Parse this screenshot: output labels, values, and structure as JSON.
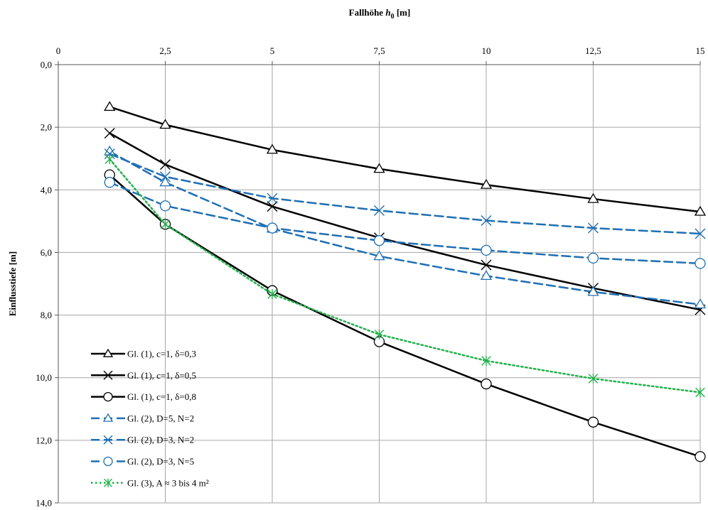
{
  "chart_data": {
    "type": "line",
    "xlabel": {
      "prefix": "Fallhöhe ",
      "var": "h",
      "sub": "0",
      "suffix": " [m]"
    },
    "ylabel": "Einflusstiefe [m]",
    "x_axis_position": "top",
    "y_axis_inverted": true,
    "xlim": [
      0,
      15
    ],
    "ylim": [
      0,
      14
    ],
    "x_ticks": [
      0,
      2.5,
      5,
      7.5,
      10,
      12.5,
      15
    ],
    "x_tick_labels": [
      "0",
      "2,5",
      "5",
      "7,5",
      "10",
      "12,5",
      "15"
    ],
    "y_ticks": [
      0,
      2,
      4,
      6,
      8,
      10,
      12,
      14
    ],
    "y_tick_labels": [
      "0,0",
      "2,0",
      "4,0",
      "6,0",
      "8,0",
      "10,0",
      "12,0",
      "14,0"
    ],
    "grid": true,
    "legend_position": "bottom-left",
    "x": [
      1.2,
      2.5,
      5,
      7.5,
      10,
      12.5,
      15
    ],
    "series": [
      {
        "name": "Gl. (1), c=1, δ=0,3",
        "color": "#000000",
        "dash": "solid",
        "marker": "triangle",
        "values": [
          1.35,
          1.92,
          2.72,
          3.33,
          3.84,
          4.29,
          4.7
        ]
      },
      {
        "name": "Gl. (1), c=1, δ=0,5",
        "color": "#000000",
        "dash": "solid",
        "marker": "x",
        "values": [
          2.19,
          3.19,
          4.53,
          5.53,
          6.4,
          7.14,
          7.83
        ]
      },
      {
        "name": "Gl. (1), c=1, δ=0,8",
        "color": "#000000",
        "dash": "solid",
        "marker": "circle",
        "values": [
          3.52,
          5.1,
          7.22,
          8.85,
          10.2,
          11.42,
          12.52
        ]
      },
      {
        "name": "Gl. (2), D=5, N=2",
        "color": "#1F6FB4",
        "dash": "dashed",
        "marker": "triangle",
        "values": [
          2.77,
          3.76,
          5.24,
          6.12,
          6.75,
          7.26,
          7.66
        ]
      },
      {
        "name": "Gl. (2), D=3, N=2",
        "color": "#1F6FB4",
        "dash": "dashed",
        "marker": "x",
        "values": [
          2.85,
          3.58,
          4.27,
          4.66,
          4.98,
          5.22,
          5.4
        ]
      },
      {
        "name": "Gl. (2), D=3, N=5",
        "color": "#1F6FB4",
        "dash": "dashed",
        "marker": "circle",
        "values": [
          3.76,
          4.51,
          5.22,
          5.62,
          5.93,
          6.18,
          6.35
        ]
      },
      {
        "name": "Gl. (3), A ≈ 3 bis 4 m²",
        "color": "#22B14C",
        "dash": "dotted",
        "marker": "asterisk",
        "values": [
          3.02,
          5.1,
          7.33,
          8.62,
          9.46,
          10.03,
          10.47
        ]
      }
    ]
  }
}
